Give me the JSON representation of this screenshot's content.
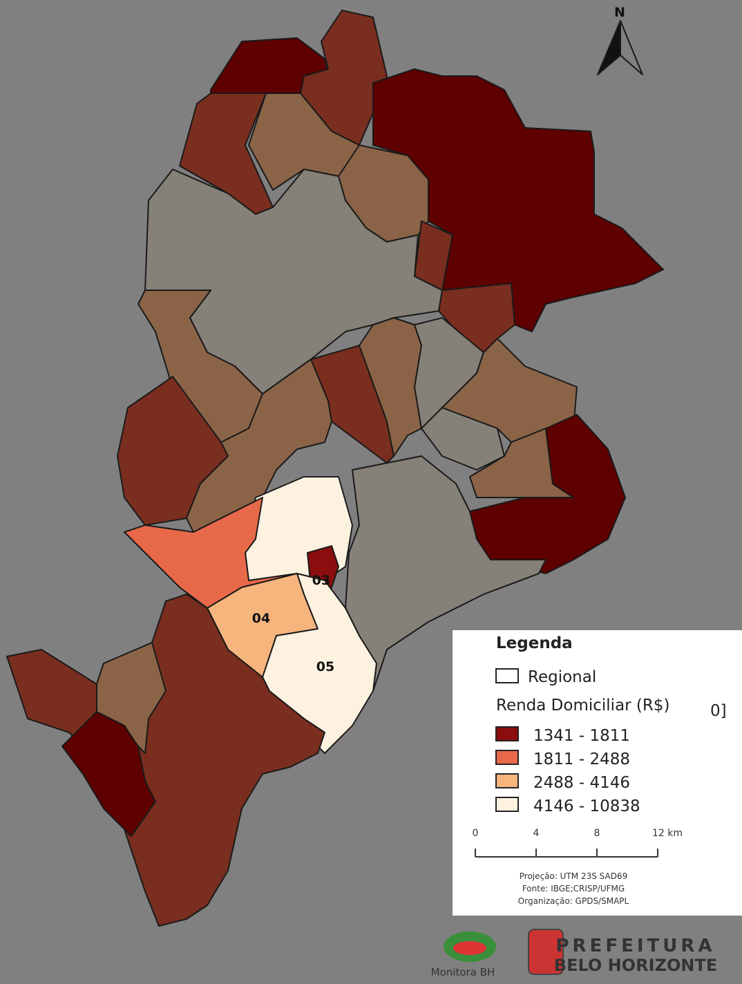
{
  "map": {
    "north": "N",
    "labels": [
      "03",
      "04",
      "05"
    ]
  },
  "legend": {
    "title": "Legenda",
    "regional": "Regional",
    "subtitle": "Renda Domiciliar (R$)",
    "hidden_text": "0]",
    "classes": [
      {
        "label": "1341 - 1811",
        "color": "#8b0d0d"
      },
      {
        "label": "1811 - 2488",
        "color": "#e8694a"
      },
      {
        "label": "2488 - 4146",
        "color": "#f7b57e"
      },
      {
        "label": "4146 - 10838",
        "color": "#fdf2e0"
      }
    ]
  },
  "scale_bar": {
    "ticks": [
      "0",
      "4",
      "8",
      "12 km"
    ]
  },
  "credits": [
    "Projeção: UTM 23S SAD69",
    "Fonte: IBGE;CRISP/UFMG",
    "Organização: GPDS/SMAPL"
  ],
  "logos": {
    "monitora": "Monitora BH",
    "prefeitura": "PREFEITURA",
    "city": "BELO HORIZONTE"
  }
}
